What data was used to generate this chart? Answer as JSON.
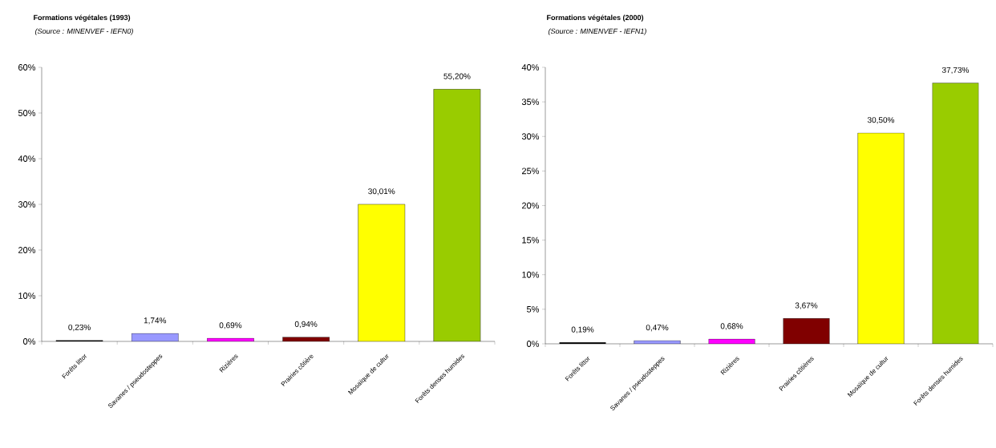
{
  "chart_data": [
    {
      "type": "bar",
      "title": "Formations végétales (1993)",
      "subtitle": "(Source : MINENVEF - IEFN0)",
      "categories": [
        "Forêts littor",
        "Savanes / pseudosteppes",
        "Rizières",
        "Prairies côtière",
        "Mosaïque de cultur",
        "Forêts denses humides"
      ],
      "values": [
        0.23,
        1.74,
        0.69,
        0.94,
        30.01,
        55.2
      ],
      "value_labels": [
        "0,23%",
        "1,74%",
        "0,69%",
        "0,94%",
        "30,01%",
        "55,20%"
      ],
      "colors": [
        "#000000",
        "#9999ff",
        "#ff00ff",
        "#800000",
        "#ffff00",
        "#99cc00"
      ],
      "ylim": [
        0,
        60
      ],
      "yticks": [
        {
          "value": 0,
          "label": "0%"
        },
        {
          "value": 10,
          "label": "10%"
        },
        {
          "value": 20,
          "label": "20%"
        },
        {
          "value": 30,
          "label": "30%"
        },
        {
          "value": 40,
          "label": "40%"
        },
        {
          "value": 50,
          "label": "50%"
        },
        {
          "value": 60,
          "label": "60%"
        }
      ],
      "grid": false
    },
    {
      "type": "bar",
      "title": "Formations végétales (2000)",
      "subtitle": "(Source : MINENVEF - IEFN1)",
      "categories": [
        "Forêts littor",
        "Savanes / pseudosteppes",
        "Rizières",
        "Prairies côtières",
        "Mosaïque de cultur",
        "Forêts denses humides"
      ],
      "values": [
        0.19,
        0.47,
        0.68,
        3.67,
        30.5,
        37.73
      ],
      "value_labels": [
        "0,19%",
        "0,47%",
        "0,68%",
        "3,67%",
        "30,50%",
        "37,73%"
      ],
      "colors": [
        "#000000",
        "#9999ff",
        "#ff00ff",
        "#800000",
        "#ffff00",
        "#99cc00"
      ],
      "ylim": [
        0,
        40
      ],
      "yticks": [
        {
          "value": 0,
          "label": "0%"
        },
        {
          "value": 5,
          "label": "5%"
        },
        {
          "value": 10,
          "label": "10%"
        },
        {
          "value": 15,
          "label": "15%"
        },
        {
          "value": 20,
          "label": "20%"
        },
        {
          "value": 25,
          "label": "25%"
        },
        {
          "value": 30,
          "label": "30%"
        },
        {
          "value": 35,
          "label": "35%"
        },
        {
          "value": 40,
          "label": "40%"
        }
      ],
      "grid": false
    }
  ]
}
